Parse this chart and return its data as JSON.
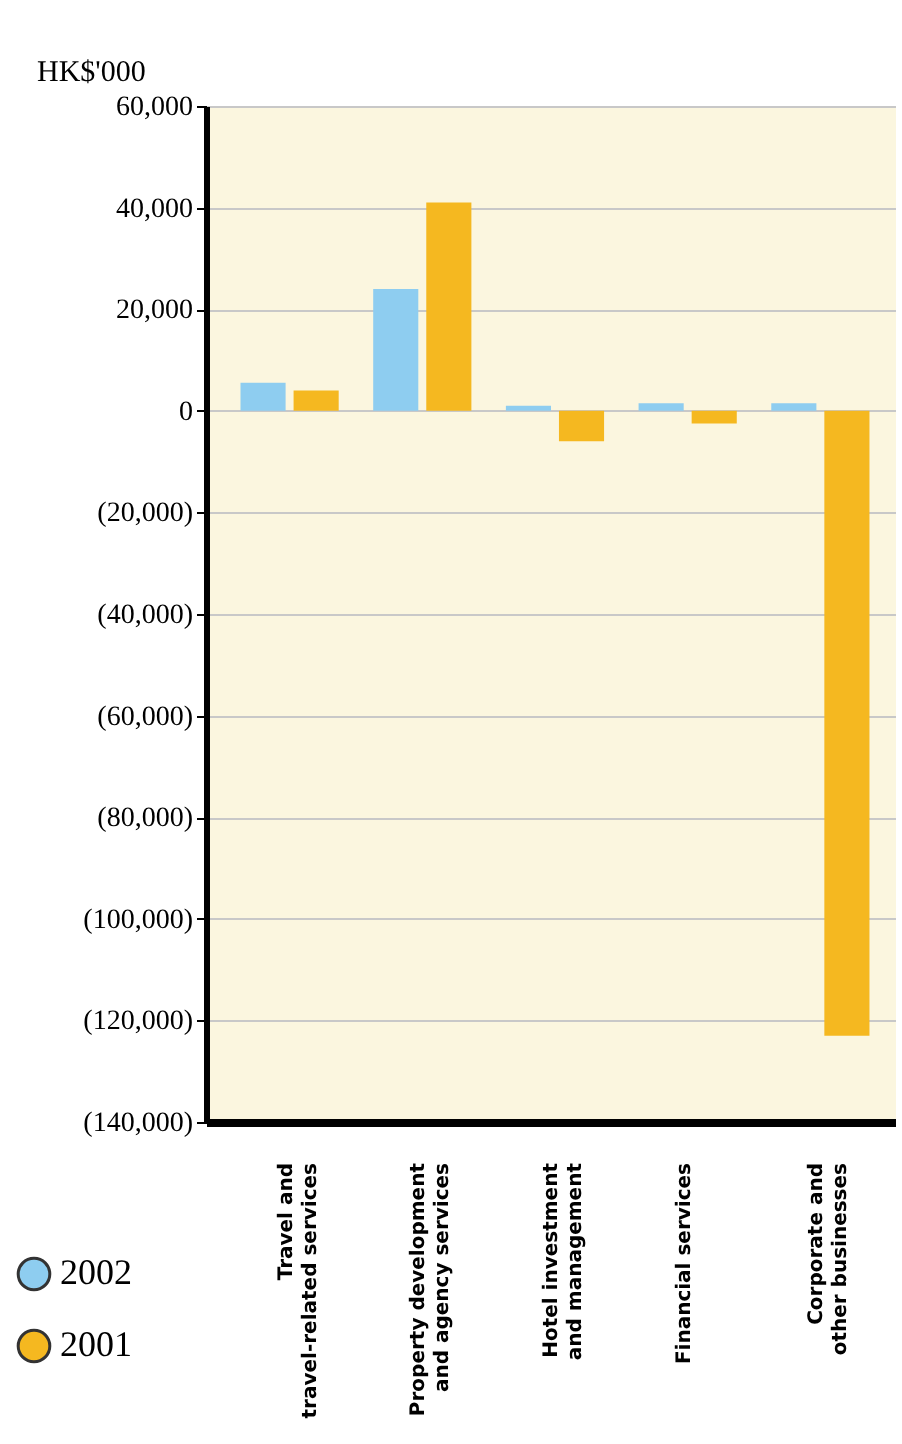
{
  "chart_data": {
    "type": "bar",
    "ylabel": "HK$'000",
    "categories": [
      "Travel and travel-related services",
      "Property development and agency services",
      "Hotel investment and management",
      "Financial services",
      "Corporate and other businesses"
    ],
    "series": [
      {
        "name": "2002",
        "color": "#8ecdf0",
        "values": [
          5500,
          24000,
          1000,
          1500,
          1500
        ]
      },
      {
        "name": "2001",
        "color": "#f5b820",
        "values": [
          4000,
          41000,
          -6000,
          -2500,
          -123000
        ]
      }
    ],
    "ylim": [
      -140000,
      60000
    ],
    "yticks": [
      {
        "value": -140000,
        "label": "(140,000)"
      },
      {
        "value": -120000,
        "label": "(120,000)"
      },
      {
        "value": -100000,
        "label": "(100,000)"
      },
      {
        "value": -80000,
        "label": "(80,000)"
      },
      {
        "value": -60000,
        "label": "(60,000)"
      },
      {
        "value": -40000,
        "label": "(40,000)"
      },
      {
        "value": -20000,
        "label": "(20,000)"
      },
      0,
      {
        "value": 20000,
        "label": "20,000"
      },
      {
        "value": 40000,
        "label": "40,000"
      },
      {
        "value": 60000,
        "label": "60,000"
      }
    ],
    "grid": "y",
    "legend": "bottom left"
  }
}
